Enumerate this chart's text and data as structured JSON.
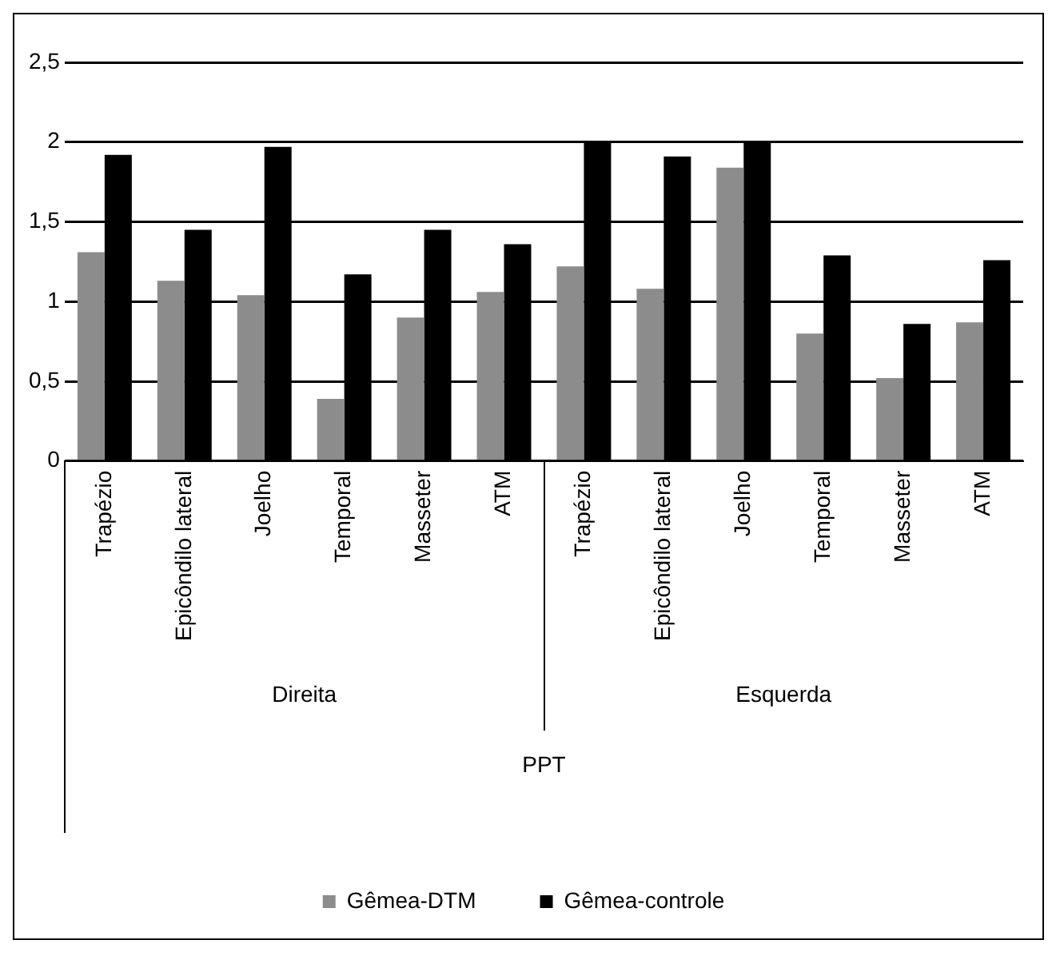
{
  "chart_data": {
    "type": "bar",
    "categories": [
      "Trapézio",
      "Epicôndilo lateral",
      "Joelho",
      "Temporal",
      "Masseter",
      "ATM",
      "Trapézio",
      "Epicôndilo lateral",
      "Joelho",
      "Temporal",
      "Masseter",
      "ATM"
    ],
    "series": [
      {
        "name": "Gêmea-DTM",
        "color": "#8c8c8c",
        "values": [
          1.31,
          1.13,
          1.04,
          0.39,
          0.9,
          1.06,
          1.22,
          1.08,
          1.84,
          0.8,
          0.52,
          0.87
        ]
      },
      {
        "name": "Gêmea-controle",
        "color": "#000000",
        "values": [
          1.92,
          1.45,
          1.97,
          1.17,
          1.45,
          1.36,
          2.0,
          1.91,
          2.0,
          1.29,
          0.86,
          1.26
        ]
      }
    ],
    "xlabel": "PPT",
    "annotations": [
      "Direita",
      "Esquerda"
    ],
    "ylim": [
      0,
      2.5
    ],
    "yticks": [
      0,
      {
        "value": 0.5,
        "label": "0,5"
      },
      1,
      {
        "value": 1.5,
        "label": "1,5"
      },
      2,
      {
        "value": 2.5,
        "label": "2,5"
      }
    ],
    "grid": "y",
    "legend": "bottom"
  }
}
